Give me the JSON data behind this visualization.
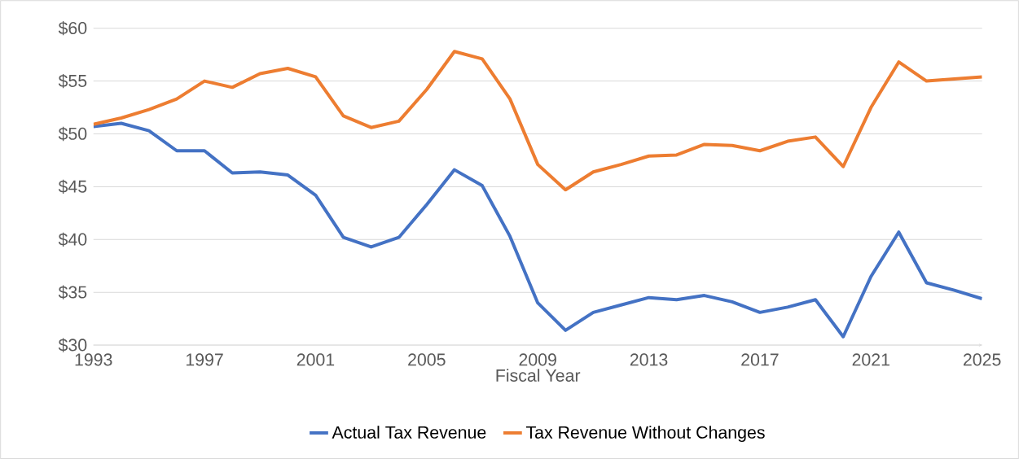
{
  "chart_data": {
    "type": "line",
    "xlabel": "Fiscal Year",
    "x": [
      1993,
      1994,
      1995,
      1996,
      1997,
      1998,
      1999,
      2000,
      2001,
      2002,
      2003,
      2004,
      2005,
      2006,
      2007,
      2008,
      2009,
      2010,
      2011,
      2012,
      2013,
      2014,
      2015,
      2016,
      2017,
      2018,
      2019,
      2020,
      2021,
      2022,
      2023,
      2024,
      2025
    ],
    "series": [
      {
        "name": "Actual Tax Revenue",
        "color": "#4472c4",
        "values": [
          50.7,
          51.0,
          50.3,
          48.4,
          48.4,
          46.3,
          46.4,
          46.1,
          44.2,
          40.2,
          39.3,
          40.2,
          43.3,
          46.6,
          45.1,
          40.3,
          34.0,
          31.4,
          33.1,
          33.8,
          34.5,
          34.3,
          34.7,
          34.1,
          33.1,
          33.6,
          34.3,
          30.8,
          36.5,
          40.7,
          35.9,
          35.2,
          34.4
        ]
      },
      {
        "name": "Tax Revenue Without Changes",
        "color": "#ed7d31",
        "values": [
          50.9,
          51.5,
          52.3,
          53.3,
          55.0,
          54.4,
          55.7,
          56.2,
          55.4,
          51.7,
          50.6,
          51.2,
          54.2,
          57.8,
          57.1,
          53.3,
          47.1,
          44.7,
          46.4,
          47.1,
          47.9,
          48.0,
          49.0,
          48.9,
          48.4,
          49.3,
          49.7,
          46.9,
          52.5,
          56.8,
          55.0,
          55.2,
          55.4
        ]
      }
    ],
    "xlim": [
      1993,
      2025
    ],
    "xticks": [
      1993,
      1997,
      2001,
      2005,
      2009,
      2013,
      2017,
      2021,
      2025
    ],
    "ylim": [
      30,
      60
    ],
    "yticks": [
      {
        "value": 30,
        "label": "$30"
      },
      {
        "value": 35,
        "label": "$35"
      },
      {
        "value": 40,
        "label": "$40"
      },
      {
        "value": 45,
        "label": "$45"
      },
      {
        "value": 50,
        "label": "$50"
      },
      {
        "value": 55,
        "label": "$55"
      },
      {
        "value": 60,
        "label": "$60"
      }
    ],
    "grid": "y",
    "legend": "bottom",
    "marker": "none",
    "line_style": "solid"
  }
}
